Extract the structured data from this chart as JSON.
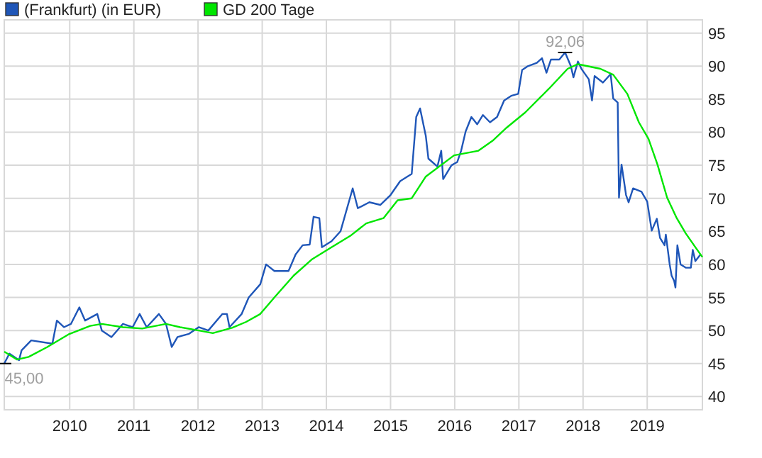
{
  "chart_data": {
    "type": "line",
    "xlim": [
      2008.98,
      2019.86
    ],
    "xticks": [
      2010,
      2011,
      2012,
      2013,
      2014,
      2015,
      2016,
      2017,
      2018,
      2019
    ],
    "ylim": [
      38,
      97
    ],
    "yticks": [
      40,
      45,
      50,
      55,
      60,
      65,
      70,
      75,
      80,
      85,
      90,
      95
    ],
    "grid": true,
    "legend": "top left",
    "marker": "none",
    "line_style": "solid",
    "annotations": [
      {
        "text": "92,06",
        "x": 2017.72,
        "y": 92.06
      },
      {
        "text": "45,00",
        "x": 2008.98,
        "y": 45
      }
    ],
    "series": [
      {
        "name": "(Frankfurt) (in EUR)",
        "color": "#1f56b8",
        "x": [
          2008.98,
          2009.06,
          2009.21,
          2009.25,
          2009.4,
          2009.73,
          2009.8,
          2009.91,
          2010.02,
          2010.15,
          2010.24,
          2010.43,
          2010.5,
          2010.65,
          2010.83,
          2010.98,
          2011.09,
          2011.2,
          2011.39,
          2011.5,
          2011.59,
          2011.68,
          2011.86,
          2012.01,
          2012.16,
          2012.38,
          2012.45,
          2012.49,
          2012.68,
          2012.79,
          2012.97,
          2013.06,
          2013.19,
          2013.41,
          2013.52,
          2013.63,
          2013.74,
          2013.8,
          2013.89,
          2013.93,
          2014.08,
          2014.22,
          2014.41,
          2014.49,
          2014.67,
          2014.84,
          2015.0,
          2015.15,
          2015.33,
          2015.4,
          2015.46,
          2015.55,
          2015.59,
          2015.73,
          2015.79,
          2015.82,
          2015.95,
          2016.04,
          2016.1,
          2016.17,
          2016.26,
          2016.35,
          2016.44,
          2016.55,
          2016.66,
          2016.77,
          2016.88,
          2016.99,
          2017.05,
          2017.14,
          2017.28,
          2017.36,
          2017.43,
          2017.5,
          2017.63,
          2017.72,
          2017.81,
          2017.85,
          2017.92,
          2017.98,
          2018.09,
          2018.14,
          2018.18,
          2018.31,
          2018.43,
          2018.47,
          2018.54,
          2018.56,
          2018.6,
          2018.67,
          2018.71,
          2018.78,
          2018.91,
          2019.0,
          2019.07,
          2019.15,
          2019.2,
          2019.27,
          2019.29,
          2019.35,
          2019.38,
          2019.42,
          2019.44,
          2019.47,
          2019.52,
          2019.6,
          2019.68,
          2019.71,
          2019.75,
          2019.83
        ],
        "values": [
          45,
          46.5,
          45.5,
          47,
          48.5,
          48,
          51.5,
          50.5,
          51,
          53.5,
          51.5,
          52.5,
          50,
          49,
          51,
          50.5,
          52.5,
          50.5,
          52.5,
          51,
          47.5,
          49,
          49.5,
          50.5,
          50,
          52.5,
          52.5,
          50.5,
          52.5,
          55,
          57,
          60,
          59,
          59,
          61.5,
          62.9,
          63,
          67.2,
          67,
          62.6,
          63.5,
          65,
          71.5,
          68.5,
          69.4,
          69,
          70.5,
          72.6,
          73.7,
          82.3,
          83.6,
          79.4,
          76,
          74.8,
          77.2,
          72.9,
          75,
          75.5,
          77.2,
          80.1,
          82.3,
          81.2,
          82.6,
          81.5,
          82.3,
          84.8,
          85.5,
          85.8,
          89.4,
          90,
          90.5,
          91.2,
          89,
          91,
          91,
          92.06,
          90,
          88.3,
          90.7,
          89.5,
          88,
          84.8,
          88.5,
          87.5,
          88.8,
          85.1,
          84.5,
          70.1,
          75.1,
          70.5,
          69.4,
          71.5,
          71,
          69.5,
          65.1,
          66.9,
          64,
          62.9,
          64.5,
          60,
          58.3,
          57.5,
          56.5,
          62.9,
          60,
          59.5,
          59.5,
          62.2,
          60.5,
          61.5
        ]
      },
      {
        "name": "GD 200 Tage",
        "color": "#00e600",
        "x": [
          2008.98,
          2009.18,
          2009.36,
          2009.65,
          2009.98,
          2010.32,
          2010.5,
          2010.83,
          2011.13,
          2011.5,
          2011.72,
          2012.01,
          2012.23,
          2012.53,
          2012.75,
          2012.97,
          2013.19,
          2013.49,
          2013.78,
          2014.08,
          2014.37,
          2014.62,
          2014.89,
          2015.11,
          2015.33,
          2015.55,
          2015.99,
          2016.37,
          2016.59,
          2016.81,
          2017.1,
          2017.47,
          2017.76,
          2017.92,
          2018.27,
          2018.47,
          2018.69,
          2018.87,
          2019.02,
          2019.16,
          2019.31,
          2019.46,
          2019.6,
          2019.75,
          2019.86
        ],
        "values": [
          46.8,
          45.6,
          46,
          47.5,
          49.4,
          50.7,
          51,
          50.5,
          50.3,
          51,
          50.5,
          50,
          49.6,
          50.4,
          51.3,
          52.5,
          55,
          58.3,
          60.8,
          62.6,
          64.3,
          66.2,
          67,
          69.7,
          70,
          73.3,
          76.5,
          77.2,
          78.7,
          80.7,
          83,
          86.6,
          89.6,
          90.3,
          89.6,
          88.7,
          85.8,
          81.5,
          79,
          75.1,
          70.1,
          67,
          64.7,
          62.6,
          61.1
        ]
      }
    ]
  }
}
